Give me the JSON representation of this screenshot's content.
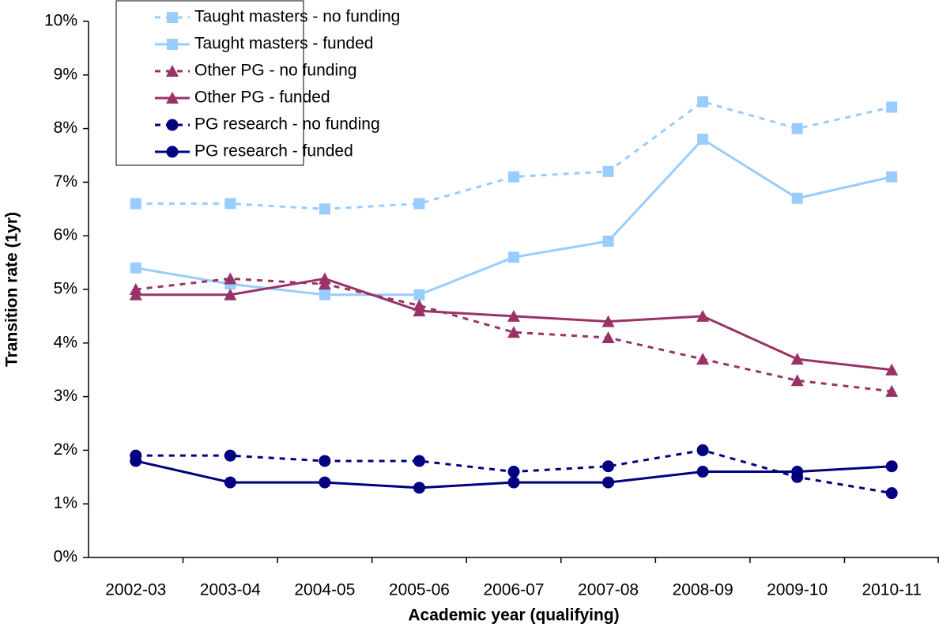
{
  "chart_data": {
    "type": "line",
    "x_label": "Academic year (qualifying)",
    "y_label": "Transition rate (1yr)",
    "categories": [
      "2002-03",
      "2003-04",
      "2004-05",
      "2005-06",
      "2006-07",
      "2007-08",
      "2008-09",
      "2009-10",
      "2010-11"
    ],
    "ylim": [
      0,
      10
    ],
    "yticks": [
      {
        "value": 0,
        "label": "0%"
      },
      {
        "value": 1,
        "label": "1%"
      },
      {
        "value": 2,
        "label": "2%"
      },
      {
        "value": 3,
        "label": "3%"
      },
      {
        "value": 4,
        "label": "4%"
      },
      {
        "value": 5,
        "label": "5%"
      },
      {
        "value": 6,
        "label": "6%"
      },
      {
        "value": 7,
        "label": "7%"
      },
      {
        "value": 8,
        "label": "8%"
      },
      {
        "value": 9,
        "label": "9%"
      },
      {
        "value": 10,
        "label": "10%"
      }
    ],
    "grid": false,
    "legend": "top-left",
    "series": [
      {
        "name": "Taught masters - no funding",
        "color": "#99ccff",
        "line_style": "dashed",
        "marker": "square",
        "values": [
          6.6,
          6.6,
          6.5,
          6.6,
          7.1,
          7.2,
          8.5,
          8.0,
          8.4
        ]
      },
      {
        "name": "Taught masters - funded",
        "color": "#99ccff",
        "line_style": "solid",
        "marker": "square",
        "values": [
          5.4,
          5.1,
          4.9,
          4.9,
          5.6,
          5.9,
          7.8,
          6.7,
          7.1
        ]
      },
      {
        "name": "Other PG - no funding",
        "color": "#993366",
        "line_style": "dashed",
        "marker": "triangle",
        "values": [
          5.0,
          5.2,
          5.1,
          4.7,
          4.2,
          4.1,
          3.7,
          3.3,
          3.1
        ]
      },
      {
        "name": "Other PG - funded",
        "color": "#993366",
        "line_style": "solid",
        "marker": "triangle",
        "values": [
          4.9,
          4.9,
          5.2,
          4.6,
          4.5,
          4.4,
          4.5,
          3.7,
          3.5
        ]
      },
      {
        "name": "PG research - no funding",
        "color": "#000080",
        "line_style": "dashed",
        "marker": "circle",
        "values": [
          1.9,
          1.9,
          1.8,
          1.8,
          1.6,
          1.7,
          2.0,
          1.5,
          1.2
        ]
      },
      {
        "name": "PG research - funded",
        "color": "#000080",
        "line_style": "solid",
        "marker": "circle",
        "values": [
          1.8,
          1.4,
          1.4,
          1.3,
          1.4,
          1.4,
          1.6,
          1.6,
          1.7
        ]
      }
    ]
  }
}
